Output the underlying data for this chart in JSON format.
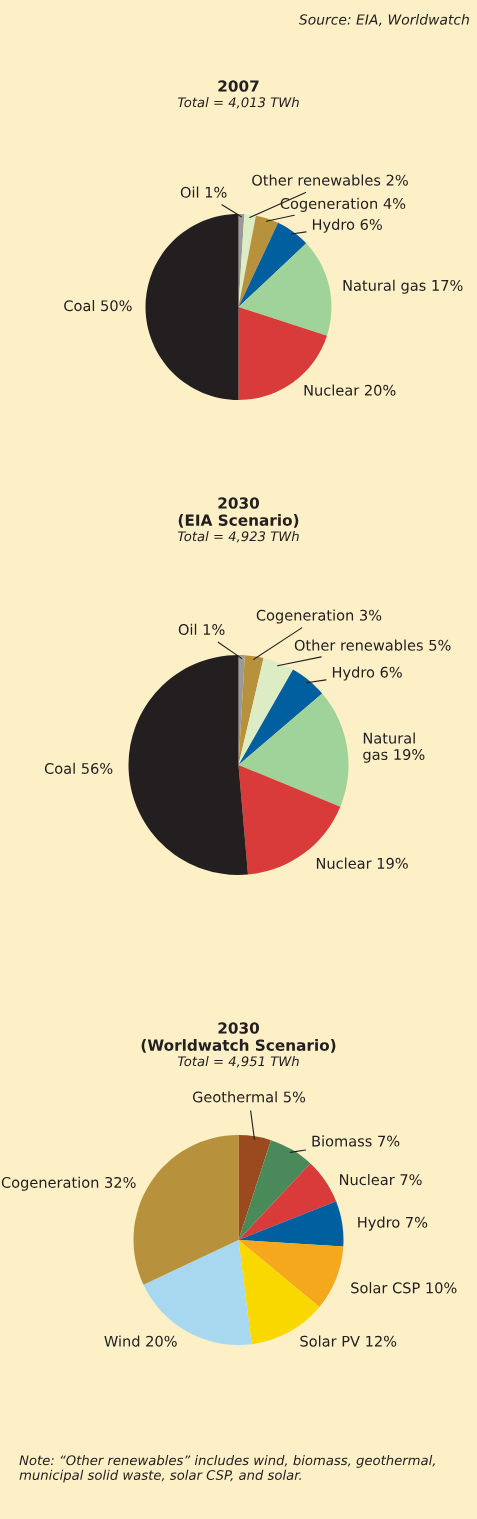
{
  "chart_data": [
    {
      "type": "pie",
      "title": "2007",
      "subtitle": "Total = 4,013 TWh",
      "annotations": [
        "Source: EIA, Worldwatch"
      ],
      "categories": [
        "Oil",
        "Other renewables",
        "Cogeneration",
        "Hydro",
        "Natural gas",
        "Nuclear",
        "Coal"
      ],
      "values": [
        1,
        2,
        4,
        6,
        17,
        20,
        50
      ],
      "value_labels": [
        "1%",
        "2%",
        "4%",
        "6%",
        "17%",
        "20%",
        "50%"
      ],
      "colors": [
        "#9a9a9a",
        "#dcecc4",
        "#b8913c",
        "#005f9e",
        "#9fd39a",
        "#d93a3a",
        "#231f20"
      ]
    },
    {
      "type": "pie",
      "title": "2030\n(EIA Scenario)",
      "subtitle": "Total = 4,923 TWh",
      "categories": [
        "Oil",
        "Cogeneration",
        "Other renewables",
        "Hydro",
        "Natural\ngas",
        "Nuclear",
        "Coal"
      ],
      "values": [
        1,
        3,
        5,
        6,
        19,
        19,
        56
      ],
      "value_labels": [
        "1%",
        "3%",
        "5%",
        "6%",
        "19%",
        "19%",
        "56%"
      ],
      "colors": [
        "#9a9a9a",
        "#b8913c",
        "#dcecc4",
        "#005f9e",
        "#9fd39a",
        "#d93a3a",
        "#231f20"
      ]
    },
    {
      "type": "pie",
      "title": "2030\n(Worldwatch Scenario)",
      "subtitle": "Total = 4,951 TWh",
      "annotations": [
        "Note: “Other renewables” includes wind, biomass, geothermal, municipal solid waste, solar CSP, and solar."
      ],
      "categories": [
        "Geothermal",
        "Biomass",
        "Nuclear",
        "Hydro",
        "Solar CSP",
        "Solar PV",
        "Wind",
        "Cogeneration"
      ],
      "values": [
        5,
        7,
        7,
        7,
        10,
        12,
        20,
        32
      ],
      "value_labels": [
        "5%",
        "7%",
        "7%",
        "7%",
        "10%",
        "12%",
        "20%",
        "32%"
      ],
      "colors": [
        "#9a4a1e",
        "#4a8a5a",
        "#d93a3a",
        "#005f9e",
        "#f5a81c",
        "#f9d800",
        "#a8d8f0",
        "#b8913c"
      ]
    }
  ]
}
